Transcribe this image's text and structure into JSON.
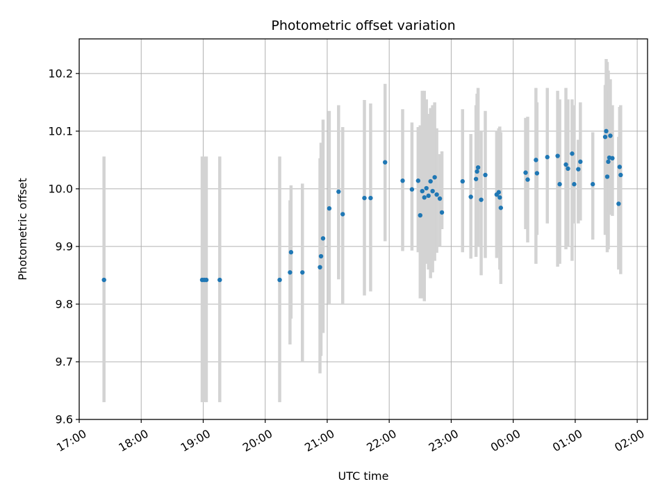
{
  "chart_data": {
    "type": "scatter",
    "title": "Photometric offset variation",
    "xlabel": "UTC time",
    "ylabel": "Photometric offset",
    "xlim": [
      "17:00",
      "02:10"
    ],
    "ylim": [
      9.6,
      10.26
    ],
    "grid": true,
    "x_ticks": [
      "17:00",
      "18:00",
      "19:00",
      "20:00",
      "21:00",
      "22:00",
      "23:00",
      "00:00",
      "01:00",
      "02:00"
    ],
    "y_ticks": [
      "9.6",
      "9.7",
      "9.8",
      "9.9",
      "10.0",
      "10.1",
      "10.2"
    ],
    "colors": {
      "point": "#1f77b4",
      "errorbar": "#d3d3d3",
      "grid": "#b0b0b0"
    },
    "series": [
      {
        "x": [
          "17:24",
          "18:59",
          "19:01",
          "19:03",
          "19:16",
          "20:14",
          "20:24",
          "20:25",
          "20:36",
          "20:53",
          "20:54",
          "20:56",
          "21:02",
          "21:11",
          "21:15",
          "21:36",
          "21:42",
          "21:56",
          "22:13",
          "22:22",
          "22:28",
          "22:30",
          "22:32",
          "22:34",
          "22:36",
          "22:38",
          "22:40",
          "22:42",
          "22:44",
          "22:46",
          "22:49",
          "22:51",
          "23:11",
          "23:19",
          "23:24",
          "23:25",
          "23:26",
          "23:29",
          "23:33",
          "23:44",
          "23:46",
          "23:47",
          "23:48",
          "24:12",
          "24:14",
          "24:22",
          "24:23",
          "24:33",
          "24:43",
          "24:45",
          "24:51",
          "24:53",
          "24:57",
          "24:59",
          "25:03",
          "25:05",
          "25:17",
          "25:29",
          "25:30",
          "25:31",
          "25:32",
          "25:33",
          "25:34",
          "25:36",
          "25:42",
          "25:43",
          "25:44"
        ],
        "y": [
          9.842,
          9.842,
          9.842,
          9.842,
          9.842,
          9.842,
          9.855,
          9.89,
          9.855,
          9.864,
          9.883,
          9.914,
          9.966,
          9.995,
          9.956,
          9.984,
          9.984,
          10.046,
          10.014,
          9.999,
          10.014,
          9.954,
          9.996,
          9.985,
          10.001,
          9.988,
          10.013,
          9.996,
          10.02,
          9.99,
          9.983,
          9.959,
          10.013,
          9.986,
          10.017,
          10.03,
          10.037,
          9.981,
          10.024,
          9.99,
          9.994,
          9.985,
          9.967,
          10.028,
          10.016,
          10.05,
          10.027,
          10.055,
          10.057,
          10.008,
          10.042,
          10.035,
          10.061,
          10.008,
          10.034,
          10.047,
          10.008,
          10.09,
          10.1,
          10.021,
          10.047,
          10.054,
          10.092,
          10.053,
          9.974,
          10.038,
          10.024
        ],
        "error_low": [
          9.63,
          9.63,
          9.63,
          9.63,
          9.63,
          9.63,
          9.73,
          9.775,
          9.7,
          9.68,
          9.71,
          9.75,
          9.8,
          9.843,
          9.8,
          9.815,
          9.822,
          9.909,
          9.892,
          9.893,
          9.89,
          9.81,
          9.81,
          9.805,
          9.87,
          9.86,
          9.845,
          9.855,
          9.875,
          9.889,
          9.9,
          9.93,
          9.89,
          9.879,
          9.882,
          9.9,
          9.9,
          9.85,
          9.88,
          9.88,
          9.89,
          9.86,
          9.835,
          9.93,
          9.907,
          9.87,
          9.92,
          9.94,
          9.865,
          9.87,
          9.895,
          9.9,
          9.875,
          9.94,
          9.94,
          9.945,
          9.912,
          9.92,
          9.93,
          9.89,
          9.895,
          9.96,
          9.955,
          9.953,
          9.86,
          9.9,
          9.852
        ],
        "error_high": [
          10.056,
          10.056,
          10.056,
          10.056,
          10.056,
          10.056,
          9.98,
          10.006,
          10.009,
          10.053,
          10.08,
          10.12,
          10.135,
          10.145,
          10.107,
          10.154,
          10.148,
          10.182,
          10.138,
          10.115,
          10.107,
          10.11,
          10.17,
          10.17,
          10.155,
          10.13,
          10.14,
          10.145,
          10.15,
          10.105,
          10.06,
          10.065,
          10.138,
          10.095,
          10.145,
          10.165,
          10.175,
          10.1,
          10.135,
          10.1,
          10.105,
          10.108,
          10.098,
          10.123,
          10.125,
          10.175,
          10.15,
          10.175,
          10.17,
          10.155,
          10.175,
          10.155,
          10.155,
          10.145,
          10.085,
          10.15,
          10.098,
          10.18,
          10.225,
          10.22,
          10.205,
          10.17,
          10.19,
          10.145,
          10.09,
          10.142,
          10.145
        ]
      }
    ]
  }
}
